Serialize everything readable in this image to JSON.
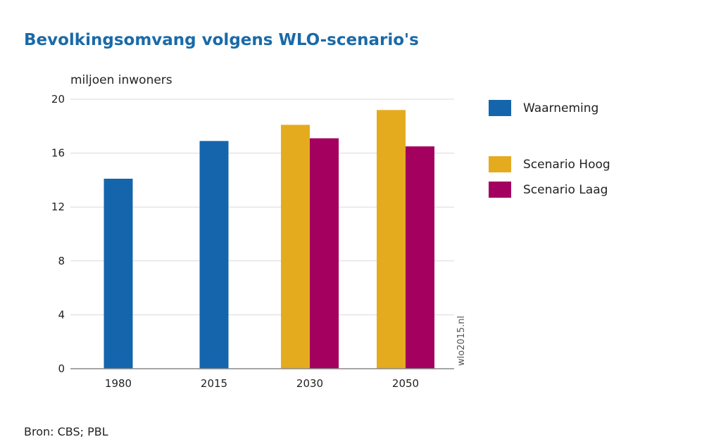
{
  "title": "Bevolkingsomvang volgens WLO-scenario's",
  "source": "Bron: CBS; PBL",
  "watermark": "wlo2015.nl",
  "colors": {
    "title": "#1a6aa8",
    "Waarneming": "#1565ad",
    "Scenario Hoog": "#e5ab1f",
    "Scenario Laag": "#a3005f",
    "grid": "#d9d9d9",
    "axis": "#888888"
  },
  "chart_data": {
    "type": "bar",
    "title": "Bevolkingsomvang volgens WLO-scenario's",
    "ylabel": "miljoen inwoners",
    "xlabel": "",
    "ylim": [
      0,
      20
    ],
    "yticks": [
      0,
      4,
      8,
      12,
      16,
      20
    ],
    "grid": true,
    "legend_position": "right",
    "categories": [
      "1980",
      "2015",
      "2030",
      "2050"
    ],
    "series": [
      {
        "name": "Waarneming",
        "values": [
          14.1,
          16.9,
          null,
          null
        ]
      },
      {
        "name": "Scenario Hoog",
        "values": [
          null,
          null,
          18.1,
          19.2
        ]
      },
      {
        "name": "Scenario Laag",
        "values": [
          null,
          null,
          17.1,
          16.5
        ]
      }
    ]
  }
}
